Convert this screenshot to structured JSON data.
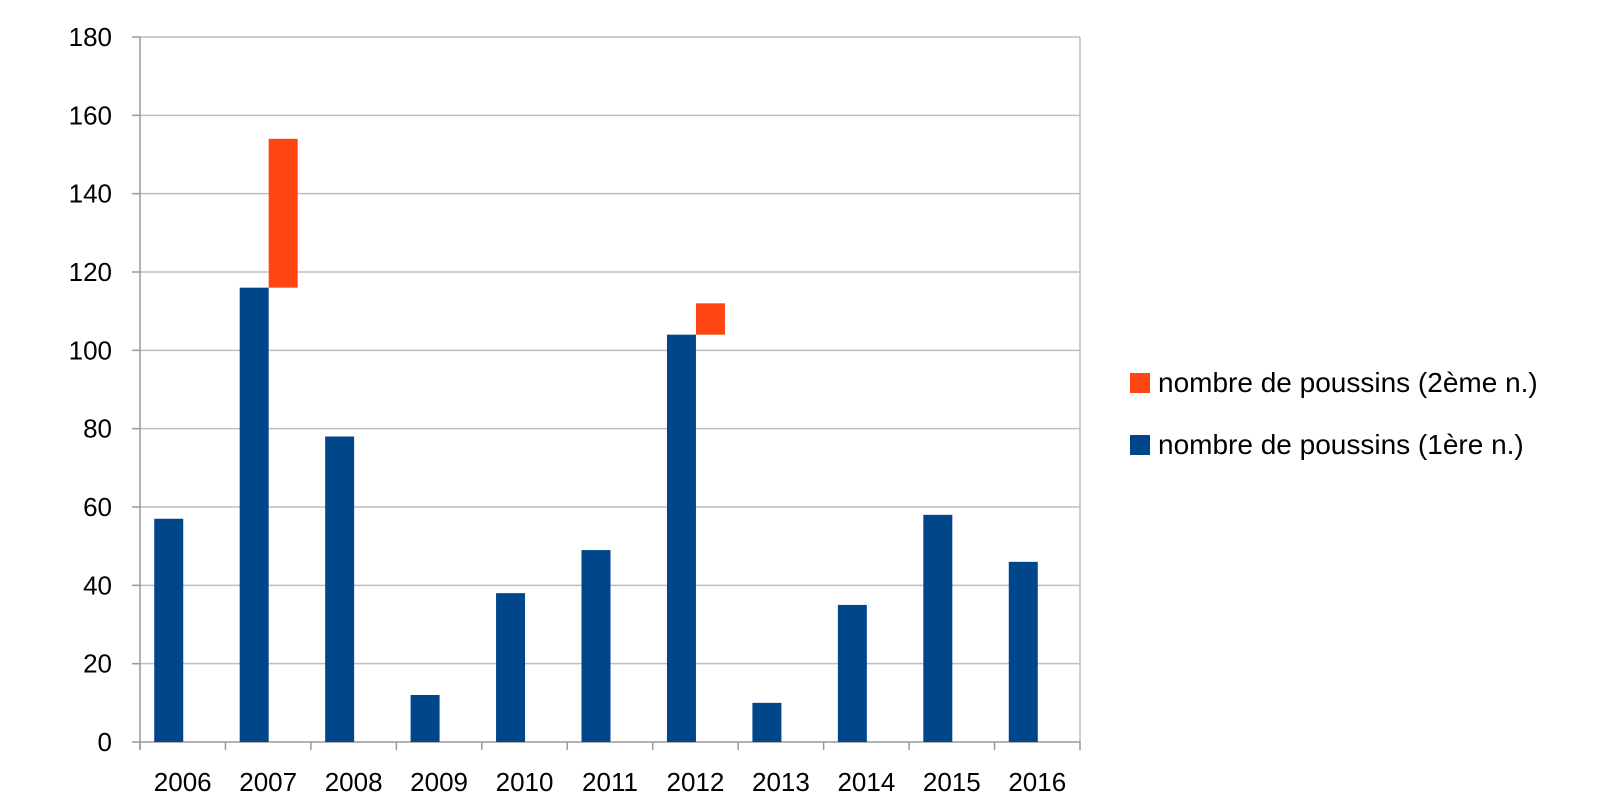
{
  "chart_data": {
    "type": "bar",
    "stacked": true,
    "categories": [
      "2006",
      "2007",
      "2008",
      "2009",
      "2010",
      "2011",
      "2012",
      "2013",
      "2014",
      "2015",
      "2016"
    ],
    "series": [
      {
        "name": "nombre de poussins (1ère n.)",
        "color": "#00468B",
        "values": [
          57,
          116,
          78,
          12,
          38,
          49,
          104,
          10,
          35,
          58,
          46
        ]
      },
      {
        "name": "nombre de poussins (2ème n.)",
        "color": "#FF4612",
        "values": [
          0,
          38,
          0,
          0,
          0,
          0,
          8,
          0,
          0,
          0,
          0
        ]
      }
    ],
    "ylim": [
      0,
      180
    ],
    "yticks": [
      0,
      20,
      40,
      60,
      80,
      100,
      120,
      140,
      160,
      180
    ],
    "grid": true,
    "legend_position": "right",
    "legend_order": [
      "nombre de poussins (2ème n.)",
      "nombre de poussins (1ère n.)"
    ]
  }
}
